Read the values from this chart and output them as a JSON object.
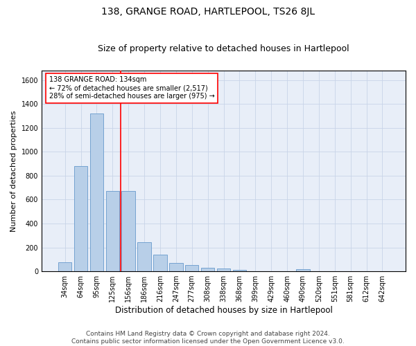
{
  "title": "138, GRANGE ROAD, HARTLEPOOL, TS26 8JL",
  "subtitle": "Size of property relative to detached houses in Hartlepool",
  "xlabel": "Distribution of detached houses by size in Hartlepool",
  "ylabel": "Number of detached properties",
  "footer_line1": "Contains HM Land Registry data © Crown copyright and database right 2024.",
  "footer_line2": "Contains public sector information licensed under the Open Government Licence v3.0.",
  "categories": [
    "34sqm",
    "64sqm",
    "95sqm",
    "125sqm",
    "156sqm",
    "186sqm",
    "216sqm",
    "247sqm",
    "277sqm",
    "308sqm",
    "338sqm",
    "368sqm",
    "399sqm",
    "429sqm",
    "460sqm",
    "490sqm",
    "520sqm",
    "551sqm",
    "581sqm",
    "612sqm",
    "642sqm"
  ],
  "values": [
    75,
    880,
    1320,
    670,
    670,
    245,
    140,
    70,
    50,
    27,
    25,
    13,
    0,
    0,
    0,
    20,
    0,
    0,
    0,
    0,
    0
  ],
  "bar_color": "#b8cfe8",
  "bar_edgecolor": "#6699cc",
  "vline_x": 3.5,
  "vline_color": "red",
  "annotation_text": "138 GRANGE ROAD: 134sqm\n← 72% of detached houses are smaller (2,517)\n28% of semi-detached houses are larger (975) →",
  "annotation_box_color": "white",
  "annotation_box_edgecolor": "red",
  "ylim": [
    0,
    1680
  ],
  "yticks": [
    0,
    200,
    400,
    600,
    800,
    1000,
    1200,
    1400,
    1600
  ],
  "grid_color": "#c8d4e8",
  "bg_color": "#e8eef8",
  "title_fontsize": 10,
  "subtitle_fontsize": 9,
  "xlabel_fontsize": 8.5,
  "ylabel_fontsize": 8,
  "tick_fontsize": 7,
  "annotation_fontsize": 7,
  "footer_fontsize": 6.5
}
